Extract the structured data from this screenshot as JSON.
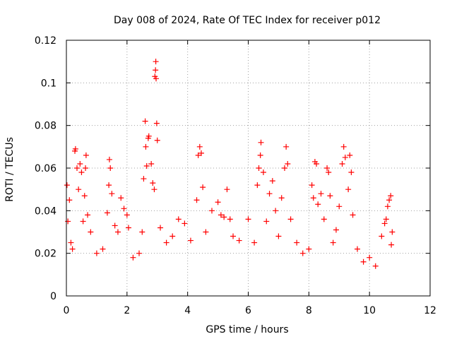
{
  "chart_data": {
    "type": "scatter",
    "title": "Day 008 of 2024, Rate Of TEC Index for receiver p012",
    "xlabel": "GPS time / hours",
    "ylabel": "ROTI / TECUs",
    "xlim": [
      0,
      12
    ],
    "ylim": [
      0,
      0.12
    ],
    "xticks": [
      0,
      2,
      4,
      6,
      8,
      10,
      12
    ],
    "xtick_labels": [
      "0",
      "2",
      "4",
      "6",
      "8",
      "10",
      "12"
    ],
    "yticks": [
      0,
      0.02,
      0.04,
      0.06,
      0.08,
      0.1,
      0.12
    ],
    "ytick_labels": [
      "0",
      "0.02",
      "0.04",
      "0.06",
      "0.08",
      "0.1",
      "0.12"
    ],
    "grid": true,
    "marker": "+",
    "marker_color": "#ff0000",
    "data_x_range": [
      0,
      10.75
    ],
    "series": [
      {
        "name": "ROTI",
        "points": [
          [
            0.02,
            0.052
          ],
          [
            0.05,
            0.035
          ],
          [
            0.1,
            0.045
          ],
          [
            0.15,
            0.025
          ],
          [
            0.2,
            0.022
          ],
          [
            0.28,
            0.068
          ],
          [
            0.3,
            0.069
          ],
          [
            0.35,
            0.06
          ],
          [
            0.4,
            0.05
          ],
          [
            0.45,
            0.062
          ],
          [
            0.5,
            0.058
          ],
          [
            0.55,
            0.035
          ],
          [
            0.6,
            0.047
          ],
          [
            0.63,
            0.06
          ],
          [
            0.65,
            0.066
          ],
          [
            0.7,
            0.038
          ],
          [
            0.8,
            0.03
          ],
          [
            1.0,
            0.02
          ],
          [
            1.2,
            0.022
          ],
          [
            1.35,
            0.039
          ],
          [
            1.4,
            0.052
          ],
          [
            1.42,
            0.064
          ],
          [
            1.45,
            0.06
          ],
          [
            1.5,
            0.048
          ],
          [
            1.6,
            0.033
          ],
          [
            1.7,
            0.03
          ],
          [
            1.8,
            0.046
          ],
          [
            1.9,
            0.041
          ],
          [
            2.0,
            0.038
          ],
          [
            2.05,
            0.032
          ],
          [
            2.2,
            0.018
          ],
          [
            2.4,
            0.02
          ],
          [
            2.5,
            0.03
          ],
          [
            2.55,
            0.055
          ],
          [
            2.6,
            0.082
          ],
          [
            2.62,
            0.07
          ],
          [
            2.65,
            0.061
          ],
          [
            2.7,
            0.074
          ],
          [
            2.72,
            0.075
          ],
          [
            2.8,
            0.062
          ],
          [
            2.85,
            0.053
          ],
          [
            2.9,
            0.05
          ],
          [
            2.92,
            0.103
          ],
          [
            2.94,
            0.106
          ],
          [
            2.95,
            0.11
          ],
          [
            2.96,
            0.102
          ],
          [
            2.98,
            0.081
          ],
          [
            3.0,
            0.073
          ],
          [
            3.1,
            0.032
          ],
          [
            3.3,
            0.025
          ],
          [
            3.5,
            0.028
          ],
          [
            3.7,
            0.036
          ],
          [
            3.9,
            0.034
          ],
          [
            4.1,
            0.026
          ],
          [
            4.3,
            0.045
          ],
          [
            4.35,
            0.066
          ],
          [
            4.4,
            0.07
          ],
          [
            4.45,
            0.067
          ],
          [
            4.5,
            0.051
          ],
          [
            4.6,
            0.03
          ],
          [
            4.8,
            0.04
          ],
          [
            5.0,
            0.044
          ],
          [
            5.1,
            0.038
          ],
          [
            5.2,
            0.037
          ],
          [
            5.3,
            0.05
          ],
          [
            5.4,
            0.036
          ],
          [
            5.5,
            0.028
          ],
          [
            5.7,
            0.026
          ],
          [
            6.0,
            0.036
          ],
          [
            6.2,
            0.025
          ],
          [
            6.3,
            0.052
          ],
          [
            6.35,
            0.06
          ],
          [
            6.4,
            0.066
          ],
          [
            6.42,
            0.072
          ],
          [
            6.5,
            0.058
          ],
          [
            6.6,
            0.035
          ],
          [
            6.7,
            0.048
          ],
          [
            6.8,
            0.054
          ],
          [
            6.9,
            0.04
          ],
          [
            7.0,
            0.028
          ],
          [
            7.1,
            0.046
          ],
          [
            7.2,
            0.06
          ],
          [
            7.25,
            0.07
          ],
          [
            7.3,
            0.062
          ],
          [
            7.4,
            0.036
          ],
          [
            7.6,
            0.025
          ],
          [
            7.8,
            0.02
          ],
          [
            8.0,
            0.022
          ],
          [
            8.1,
            0.052
          ],
          [
            8.15,
            0.046
          ],
          [
            8.2,
            0.063
          ],
          [
            8.25,
            0.062
          ],
          [
            8.3,
            0.043
          ],
          [
            8.4,
            0.048
          ],
          [
            8.5,
            0.036
          ],
          [
            8.6,
            0.06
          ],
          [
            8.65,
            0.058
          ],
          [
            8.7,
            0.047
          ],
          [
            8.8,
            0.025
          ],
          [
            8.9,
            0.031
          ],
          [
            9.0,
            0.042
          ],
          [
            9.1,
            0.062
          ],
          [
            9.15,
            0.07
          ],
          [
            9.2,
            0.065
          ],
          [
            9.3,
            0.05
          ],
          [
            9.35,
            0.066
          ],
          [
            9.4,
            0.058
          ],
          [
            9.45,
            0.038
          ],
          [
            9.6,
            0.022
          ],
          [
            9.8,
            0.016
          ],
          [
            10.0,
            0.018
          ],
          [
            10.2,
            0.014
          ],
          [
            10.4,
            0.028
          ],
          [
            10.5,
            0.034
          ],
          [
            10.55,
            0.036
          ],
          [
            10.6,
            0.042
          ],
          [
            10.65,
            0.045
          ],
          [
            10.7,
            0.047
          ],
          [
            10.72,
            0.024
          ],
          [
            10.75,
            0.03
          ]
        ]
      }
    ]
  }
}
